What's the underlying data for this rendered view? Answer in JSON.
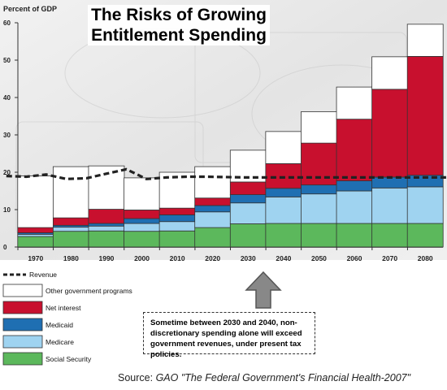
{
  "title_lines": [
    "The Risks of Growing",
    "Entitlement Spending"
  ],
  "callout_text": "Sometime between 2030 and 2040, non-discretionary spending alone will exceed government revenues, under present tax policies.",
  "source_prefix": "Source: ",
  "source_text": "GAO \"The Federal Government's Financial Health-2007\"",
  "colors": {
    "social_security": "#5cb85c",
    "medicare": "#9fd3f0",
    "medicaid": "#1f6fb2",
    "net_interest": "#c8102e",
    "other": "#ffffff",
    "revenue": "#222222",
    "arrow": "#888888"
  },
  "chart_data": {
    "type": "bar",
    "stacked": true,
    "ylabel": "Percent of GDP",
    "ylim": [
      0,
      60
    ],
    "yticks": [
      0,
      10,
      20,
      30,
      40,
      50,
      60
    ],
    "categories": [
      "1970",
      "1980",
      "1990",
      "2000",
      "2010",
      "2020",
      "2030",
      "2040",
      "2050",
      "2060",
      "2070",
      "2080"
    ],
    "series": [
      {
        "name": "Social Security",
        "color_key": "social_security",
        "values": [
          2.8,
          4.2,
          4.3,
          4.2,
          4.3,
          5.2,
          6.2,
          6.3,
          6.3,
          6.3,
          6.3,
          6.3
        ]
      },
      {
        "name": "Medicare",
        "color_key": "medicare",
        "values": [
          0.6,
          1.1,
          1.3,
          2.1,
          2.5,
          4.2,
          5.6,
          7.1,
          7.9,
          8.7,
          9.5,
          9.8
        ]
      },
      {
        "name": "Medicaid",
        "color_key": "medicaid",
        "values": [
          0.4,
          0.5,
          0.7,
          1.3,
          1.8,
          1.7,
          2.2,
          2.3,
          2.4,
          2.7,
          2.9,
          3.1
        ]
      },
      {
        "name": "Net interest",
        "color_key": "net_interest",
        "values": [
          1.4,
          2.0,
          3.8,
          2.3,
          1.8,
          2.0,
          3.4,
          6.6,
          11.2,
          16.5,
          23.5,
          31.8
        ]
      },
      {
        "name": "Other government programs",
        "color_key": "other",
        "values": [
          13.8,
          13.7,
          11.6,
          8.6,
          9.6,
          8.4,
          8.5,
          8.6,
          8.4,
          8.6,
          8.7,
          8.6
        ]
      }
    ],
    "revenue": {
      "name": "Revenue",
      "x": [
        1970,
        1975,
        1980,
        1985,
        1990,
        1995,
        2000,
        2005,
        2010,
        2015,
        2020,
        2030,
        2040,
        2050,
        2060,
        2070,
        2080
      ],
      "values": [
        19.0,
        18.8,
        19.4,
        18.2,
        18.4,
        19.6,
        20.8,
        18.2,
        18.6,
        18.8,
        18.8,
        18.6,
        18.6,
        18.6,
        18.6,
        18.6,
        18.6
      ]
    },
    "legend": {
      "placement": "bottom-left",
      "order": [
        "Revenue",
        "Other government programs",
        "Net interest",
        "Medicaid",
        "Medicare",
        "Social Security"
      ]
    }
  }
}
